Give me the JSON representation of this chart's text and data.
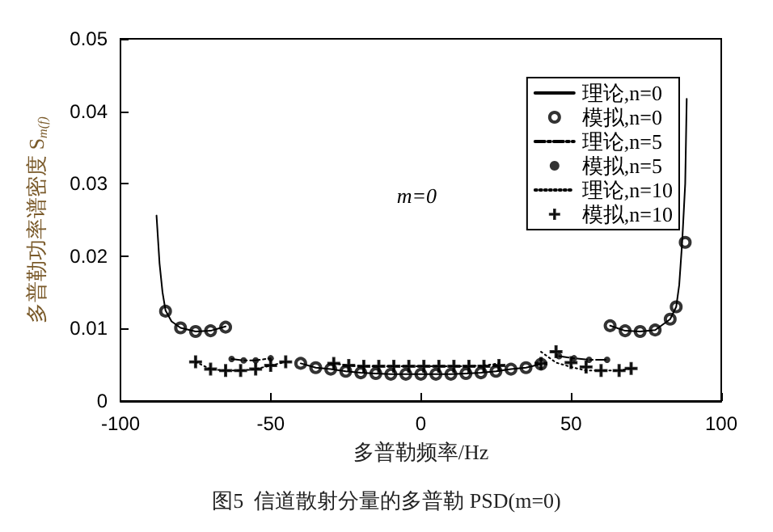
{
  "chart_data": {
    "type": "line",
    "title": "图5  信道散射分量的多普勒 PSD(m=0)",
    "xlabel": "多普勒频率/Hz",
    "ylabel": "多普勒功率谱密度 S$_{m(f)}$",
    "xlim": [
      -100,
      100
    ],
    "xticks": [
      -100,
      -50,
      0,
      50,
      100
    ],
    "ylim": [
      0,
      0.05
    ],
    "yticks": [
      0,
      0.01,
      0.02,
      0.03,
      0.04,
      0.05
    ],
    "grid": false,
    "legend": "top right",
    "annotations": [
      "m=0"
    ],
    "series": [
      {
        "name": "理论,n=0",
        "type": "line",
        "color": "#000000",
        "line_style": "solid",
        "marker": "none",
        "x": [
          -88,
          -87,
          -86,
          -85,
          -83,
          -80,
          -75,
          -70,
          -65,
          -52,
          -40,
          -35,
          -30,
          -25,
          -20,
          -15,
          -10,
          -5,
          0,
          5,
          10,
          15,
          20,
          25,
          30,
          35,
          40,
          52,
          63,
          68,
          73,
          78,
          83,
          85,
          86,
          87,
          88,
          88.5
        ],
        "values": [
          0.0256,
          0.019,
          0.015,
          0.0125,
          0.011,
          0.0101,
          0.0096,
          0.0097,
          0.0103,
          null,
          0.0052,
          0.0046,
          0.0044,
          0.0041,
          0.0039,
          0.0038,
          0.0037,
          0.0037,
          0.0037,
          0.0037,
          0.0037,
          0.0038,
          0.0039,
          0.0041,
          0.0044,
          0.0046,
          0.0051,
          null,
          0.0104,
          0.0097,
          0.0096,
          0.0098,
          0.0113,
          0.013,
          0.016,
          0.022,
          0.03,
          0.0417
        ]
      },
      {
        "name": "模拟,n=0",
        "type": "scatter",
        "color": "#000000",
        "marker": "circle",
        "x": [
          -85,
          -80,
          -75,
          -70,
          -65,
          -40,
          -35,
          -30,
          -25,
          -20,
          -15,
          -10,
          -5,
          0,
          5,
          10,
          15,
          20,
          25,
          30,
          35,
          40,
          63,
          68,
          73,
          78,
          83,
          85,
          88
        ],
        "values": [
          0.0124,
          0.0101,
          0.0096,
          0.0097,
          0.0102,
          0.0052,
          0.0046,
          0.0044,
          0.0041,
          0.0039,
          0.0038,
          0.0037,
          0.0037,
          0.0037,
          0.0037,
          0.0037,
          0.0038,
          0.0039,
          0.0041,
          0.0044,
          0.0046,
          0.0051,
          0.0104,
          0.0097,
          0.0096,
          0.0098,
          0.0113,
          0.013,
          0.0219
        ]
      },
      {
        "name": "理论,n=5",
        "color": "#000000",
        "line_style": "dashed",
        "marker": "none",
        "x": [
          -63,
          -59,
          -55,
          -50,
          0,
          46,
          51,
          56,
          62
        ],
        "values": [
          0.0058,
          0.0056,
          0.0056,
          0.0059,
          null,
          0.0062,
          0.0059,
          0.0057,
          0.0057
        ]
      },
      {
        "name": "模拟,n=5",
        "type": "scatter",
        "color": "#000000",
        "marker": "circle",
        "x": [
          -63,
          -59,
          -55,
          -50,
          46,
          51,
          56,
          62
        ],
        "values": [
          0.0058,
          0.0056,
          0.0056,
          0.0059,
          0.0062,
          0.0059,
          0.0057,
          0.0057
        ]
      },
      {
        "name": "理论,n=10",
        "color": "#000000",
        "line_style": "dotted",
        "marker": "none",
        "x": [
          -75,
          -70,
          -65,
          -60,
          -55,
          -50,
          -45,
          -37,
          -29,
          -24,
          -19,
          -14,
          -9,
          -4,
          1,
          6,
          11,
          16,
          21,
          26,
          33,
          40,
          45,
          50,
          55,
          60,
          66,
          70
        ],
        "values": [
          0.0054,
          0.0044,
          0.0042,
          0.0042,
          0.0044,
          0.0049,
          0.0054,
          null,
          0.0052,
          0.0049,
          0.0048,
          0.0048,
          0.0048,
          0.0048,
          0.0048,
          0.0048,
          0.0048,
          0.0048,
          0.0049,
          0.0052,
          null,
          0.0068,
          0.0053,
          0.0047,
          0.0042,
          0.0042,
          0.0042,
          0.0045
        ]
      },
      {
        "name": "模拟,n=10",
        "type": "scatter",
        "color": "#000000",
        "marker": "cross",
        "x": [
          -75,
          -70,
          -65,
          -60,
          -55,
          -50,
          -45,
          -29,
          -24,
          -19,
          -14,
          -9,
          -4,
          1,
          6,
          11,
          16,
          21,
          26,
          40,
          45,
          50,
          55,
          60,
          66,
          70
        ],
        "values": [
          0.0054,
          0.0044,
          0.0042,
          0.0042,
          0.0044,
          0.0049,
          0.0054,
          0.0052,
          0.0049,
          0.0048,
          0.0048,
          0.0048,
          0.0048,
          0.0048,
          0.0048,
          0.0048,
          0.0048,
          0.0048,
          0.0049,
          0.0052,
          0.0068,
          0.0053,
          0.0047,
          0.0042,
          0.0042,
          0.0045
        ]
      }
    ]
  }
}
